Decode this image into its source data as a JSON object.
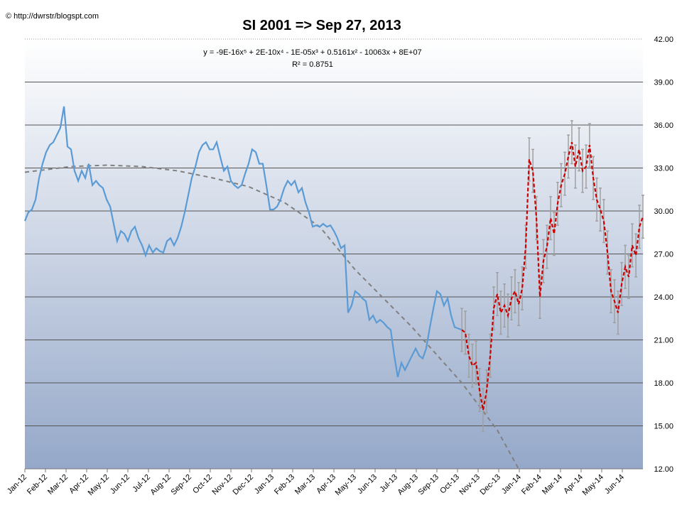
{
  "chart_data": {
    "type": "line",
    "title": "SI 2001 => Sep 27, 2013",
    "source": "© http://dwrstr/blogspt.com",
    "annotations": [
      "y = -9E-16x⁵ + 2E-10x⁴ - 1E-05x³ + 0.5161x² - 10063x + 8E+07",
      "R² = 0.8751"
    ],
    "xlim": [
      0,
      30
    ],
    "ylim": [
      12,
      42
    ],
    "xticks": [
      {
        "value": 0,
        "label": "Jan-12"
      },
      {
        "value": 1,
        "label": "Feb-12"
      },
      {
        "value": 2,
        "label": "Mar-12"
      },
      {
        "value": 3,
        "label": "Apr-12"
      },
      {
        "value": 4,
        "label": "May-12"
      },
      {
        "value": 5,
        "label": "Jun-12"
      },
      {
        "value": 6,
        "label": "Jul-12"
      },
      {
        "value": 7,
        "label": "Aug-12"
      },
      {
        "value": 8,
        "label": "Sep-12"
      },
      {
        "value": 9,
        "label": "Oct-12"
      },
      {
        "value": 10,
        "label": "Nov-12"
      },
      {
        "value": 11,
        "label": "Dec-12"
      },
      {
        "value": 12,
        "label": "Jan-13"
      },
      {
        "value": 13,
        "label": "Feb-13"
      },
      {
        "value": 14,
        "label": "Mar-13"
      },
      {
        "value": 15,
        "label": "Apr-13"
      },
      {
        "value": 16,
        "label": "May-13"
      },
      {
        "value": 17,
        "label": "Jun-13"
      },
      {
        "value": 18,
        "label": "Jul-13"
      },
      {
        "value": 19,
        "label": "Aug-13"
      },
      {
        "value": 20,
        "label": "Sep-13"
      },
      {
        "value": 21,
        "label": "Oct-13"
      },
      {
        "value": 22,
        "label": "Nov-13"
      },
      {
        "value": 23,
        "label": "Dec-13"
      },
      {
        "value": 24,
        "label": "Jan-14"
      },
      {
        "value": 25,
        "label": "Feb-14"
      },
      {
        "value": 26,
        "label": "Mar-14"
      },
      {
        "value": 27,
        "label": "Apr-14"
      },
      {
        "value": 28,
        "label": "May-14"
      },
      {
        "value": 29,
        "label": "Jun-14"
      }
    ],
    "yticks": [
      {
        "value": 12,
        "label": "12.00"
      },
      {
        "value": 15,
        "label": "15.00"
      },
      {
        "value": 18,
        "label": "18.00"
      },
      {
        "value": 21,
        "label": "21.00"
      },
      {
        "value": 24,
        "label": "24.00"
      },
      {
        "value": 27,
        "label": "27.00"
      },
      {
        "value": 30,
        "label": "30.00"
      },
      {
        "value": 33,
        "label": "33.00"
      },
      {
        "value": 36,
        "label": "36.00"
      },
      {
        "value": 39,
        "label": "39.00"
      },
      {
        "value": 42,
        "label": "42.00"
      }
    ],
    "grid": true,
    "series": [
      {
        "color": "#5b9bd5",
        "dashed": false,
        "x": [
          0,
          0.17,
          0.34,
          0.52,
          0.69,
          0.86,
          1.03,
          1.21,
          1.38,
          1.55,
          1.72,
          1.9,
          2.07,
          2.24,
          2.41,
          2.59,
          2.76,
          2.93,
          3.1,
          3.28,
          3.45,
          3.62,
          3.79,
          3.97,
          4.14,
          4.31,
          4.48,
          4.66,
          4.83,
          5,
          5.17,
          5.34,
          5.52,
          5.69,
          5.86,
          6.03,
          6.21,
          6.38,
          6.55,
          6.72,
          6.9,
          7.07,
          7.24,
          7.41,
          7.59,
          7.76,
          7.93,
          8.1,
          8.28,
          8.45,
          8.62,
          8.79,
          8.97,
          9.14,
          9.31,
          9.48,
          9.66,
          9.83,
          10,
          10.17,
          10.34,
          10.52,
          10.69,
          10.86,
          11.03,
          11.21,
          11.38,
          11.55,
          11.72,
          11.9,
          12.07,
          12.24,
          12.41,
          12.59,
          12.76,
          12.93,
          13.1,
          13.28,
          13.45,
          13.62,
          13.79,
          13.97,
          14.14,
          14.31,
          14.48,
          14.66,
          14.83,
          15,
          15.17,
          15.34,
          15.52,
          15.69,
          15.86,
          16.03,
          16.21,
          16.38,
          16.55,
          16.72,
          16.9,
          17.07,
          17.24,
          17.41,
          17.59,
          17.76,
          17.93,
          18.1,
          18.28,
          18.45,
          18.62,
          18.79,
          18.97,
          19.14,
          19.31,
          19.48,
          19.66,
          19.83,
          20,
          20.17,
          20.34,
          20.52,
          20.69,
          20.86,
          21.03,
          21.21
        ],
        "values": [
          29.3,
          29.9,
          30.1,
          30.8,
          32.3,
          33.3,
          34.1,
          34.6,
          34.8,
          35.3,
          35.8,
          37.3,
          34.5,
          34.3,
          32.8,
          32.1,
          32.8,
          32.3,
          33.3,
          31.8,
          32.1,
          31.8,
          31.6,
          30.8,
          30.3,
          29.1,
          27.9,
          28.6,
          28.4,
          27.9,
          28.6,
          28.9,
          28.1,
          27.6,
          26.9,
          27.6,
          27.1,
          27.4,
          27.2,
          27.1,
          27.9,
          28.1,
          27.6,
          28.1,
          28.9,
          29.9,
          31.1,
          32.3,
          33.1,
          34.1,
          34.6,
          34.8,
          34.3,
          34.3,
          34.8,
          33.8,
          32.8,
          33.1,
          32.1,
          31.8,
          31.6,
          31.8,
          32.6,
          33.3,
          34.3,
          34.1,
          33.3,
          33.3,
          31.8,
          30.1,
          30.1,
          30.3,
          30.8,
          31.6,
          32.1,
          31.8,
          32.1,
          31.3,
          31.6,
          30.6,
          29.9,
          28.9,
          29,
          28.9,
          29.1,
          28.9,
          29,
          28.6,
          28.1,
          27.4,
          27.6,
          22.9,
          23.4,
          24.4,
          24.2,
          23.9,
          23.7,
          22.4,
          22.7,
          22.2,
          22.4,
          22.2,
          21.9,
          21.7,
          19.9,
          18.4,
          19.4,
          18.9,
          19.4,
          19.9,
          20.4,
          19.9,
          19.7,
          20.4,
          21.9,
          23.2,
          24.4,
          24.2,
          23.4,
          23.9,
          22.7,
          21.9,
          21.8,
          21.7
        ]
      },
      {
        "color": "#cc0000",
        "dashed": true,
        "error_color": "#a0a0a0",
        "x": [
          21.21,
          21.38,
          21.55,
          21.72,
          21.9,
          22.07,
          22.24,
          22.41,
          22.59,
          22.76,
          22.93,
          23.1,
          23.28,
          23.45,
          23.62,
          23.79,
          23.97,
          24.14,
          24.31,
          24.48,
          24.66,
          24.83,
          25,
          25.17,
          25.34,
          25.52,
          25.69,
          25.86,
          26.03,
          26.21,
          26.38,
          26.55,
          26.72,
          26.9,
          27.07,
          27.24,
          27.41,
          27.59,
          27.76,
          27.93,
          28.1,
          28.28,
          28.45,
          28.62,
          28.79,
          28.97,
          29.14,
          29.31,
          29.48,
          29.66,
          29.83,
          30
        ],
        "values": [
          21.7,
          21.5,
          19.9,
          19.2,
          19.4,
          17.5,
          16.1,
          17.4,
          19.9,
          23.2,
          24.2,
          22.9,
          23.4,
          22.7,
          23.9,
          24.4,
          23.5,
          24.6,
          27.5,
          33.6,
          32.8,
          29.5,
          24,
          26.5,
          27.5,
          29.5,
          28.4,
          30.5,
          31.8,
          32.6,
          33.8,
          34.8,
          33.1,
          34.3,
          32.8,
          33.1,
          34.6,
          32.3,
          30.8,
          30.1,
          29.3,
          27.1,
          24.4,
          23.7,
          22.9,
          24.9,
          26.1,
          25.4,
          27.6,
          26.9,
          28.9,
          29.6
        ],
        "errors": [
          1.5,
          1.5,
          1.5,
          1.5,
          1.5,
          1.5,
          1.5,
          1.5,
          1.5,
          1.5,
          1.5,
          1.5,
          1.5,
          1.5,
          1.5,
          1.5,
          1.5,
          1.5,
          1.5,
          1.5,
          1.5,
          1.5,
          1.5,
          1.5,
          1.5,
          1.5,
          1.5,
          1.5,
          1.5,
          1.5,
          1.5,
          1.5,
          1.5,
          1.5,
          1.5,
          1.5,
          1.5,
          1.5,
          1.5,
          1.5,
          1.5,
          1.5,
          1.5,
          1.5,
          1.5,
          1.5,
          1.5,
          1.5,
          1.5,
          1.5,
          1.5,
          1.5
        ]
      },
      {
        "color": "#808080",
        "dashed": true,
        "trendline": true,
        "x": [
          0,
          2.24,
          3.97,
          5.69,
          7.41,
          9.14,
          10.86,
          12.59,
          14.31,
          16.03,
          18.79,
          21.21,
          22.93,
          23.97
        ],
        "values": [
          32.7,
          33.1,
          33.2,
          33.1,
          32.8,
          32.3,
          31.7,
          30.6,
          28.9,
          25.9,
          21.9,
          18,
          14.7,
          12
        ]
      }
    ]
  }
}
